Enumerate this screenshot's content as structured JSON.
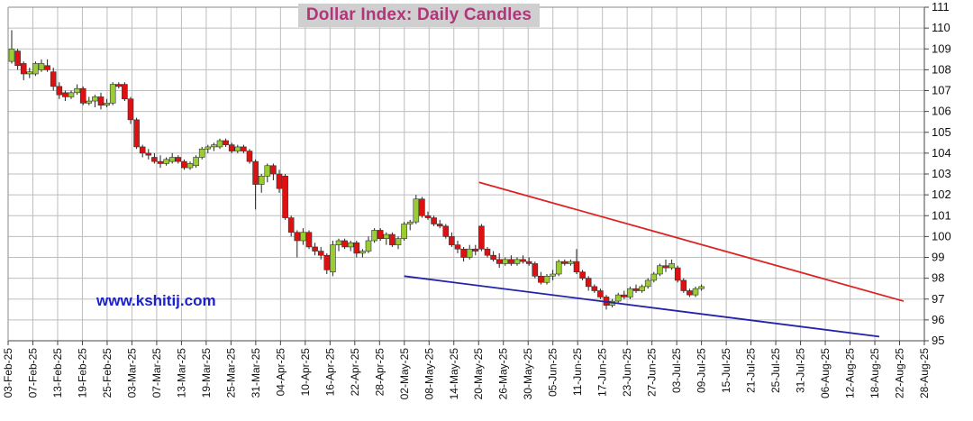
{
  "chart_data": {
    "type": "candlestick",
    "title": "Dollar Index: Daily Candles",
    "watermark": "www.kshitij.com",
    "ylim": [
      95,
      111
    ],
    "y_ticks": [
      95,
      96,
      97,
      98,
      99,
      100,
      101,
      102,
      103,
      104,
      105,
      106,
      107,
      108,
      109,
      110,
      111
    ],
    "x_tick_labels": [
      "03-Feb-25",
      "07-Feb-25",
      "13-Feb-25",
      "19-Feb-25",
      "25-Feb-25",
      "03-Mar-25",
      "07-Mar-25",
      "13-Mar-25",
      "19-Mar-25",
      "25-Mar-25",
      "31-Mar-25",
      "04-Apr-25",
      "10-Apr-25",
      "16-Apr-25",
      "22-Apr-25",
      "28-Apr-25",
      "02-May-25",
      "08-May-25",
      "14-May-25",
      "20-May-25",
      "26-May-25",
      "30-May-25",
      "05-Jun-25",
      "11-Jun-25",
      "17-Jun-25",
      "23-Jun-25",
      "27-Jun-25",
      "03-Jul-25",
      "09-Jul-25",
      "15-Jul-25",
      "21-Jul-25",
      "25-Jul-25",
      "31-Jul-25",
      "06-Aug-25",
      "12-Aug-25",
      "18-Aug-25",
      "22-Aug-25",
      "28-Aug-25"
    ],
    "grid": true,
    "y_axis_position": "right",
    "colors": {
      "up": "#9acd32",
      "down": "#dd1111",
      "upper_trendline": "#dd2222",
      "lower_trendline": "#2222aa",
      "grid": "#bdbdbd"
    },
    "candles": [
      {
        "o": 108.4,
        "h": 109.9,
        "l": 108.3,
        "c": 109.0
      },
      {
        "o": 108.9,
        "h": 109.0,
        "l": 108.0,
        "c": 108.2
      },
      {
        "o": 108.3,
        "h": 108.4,
        "l": 107.5,
        "c": 107.8
      },
      {
        "o": 107.8,
        "h": 108.1,
        "l": 107.6,
        "c": 107.9
      },
      {
        "o": 107.8,
        "h": 108.4,
        "l": 107.7,
        "c": 108.3
      },
      {
        "o": 108.0,
        "h": 108.5,
        "l": 107.9,
        "c": 108.3
      },
      {
        "o": 108.2,
        "h": 108.5,
        "l": 107.9,
        "c": 108.0
      },
      {
        "o": 107.9,
        "h": 108.1,
        "l": 107.0,
        "c": 107.2
      },
      {
        "o": 107.2,
        "h": 107.4,
        "l": 106.6,
        "c": 106.8
      },
      {
        "o": 106.9,
        "h": 107.0,
        "l": 106.5,
        "c": 106.7
      },
      {
        "o": 106.7,
        "h": 107.0,
        "l": 106.6,
        "c": 106.9
      },
      {
        "o": 106.9,
        "h": 107.3,
        "l": 106.8,
        "c": 107.1
      },
      {
        "o": 107.1,
        "h": 107.2,
        "l": 106.3,
        "c": 106.4
      },
      {
        "o": 106.4,
        "h": 106.7,
        "l": 106.3,
        "c": 106.5
      },
      {
        "o": 106.5,
        "h": 106.8,
        "l": 106.2,
        "c": 106.7
      },
      {
        "o": 106.7,
        "h": 106.9,
        "l": 106.1,
        "c": 106.3
      },
      {
        "o": 106.3,
        "h": 106.6,
        "l": 106.2,
        "c": 106.4
      },
      {
        "o": 106.4,
        "h": 107.4,
        "l": 106.3,
        "c": 107.3
      },
      {
        "o": 107.3,
        "h": 107.4,
        "l": 107.1,
        "c": 107.2
      },
      {
        "o": 107.3,
        "h": 107.4,
        "l": 106.5,
        "c": 106.6
      },
      {
        "o": 106.6,
        "h": 106.7,
        "l": 105.4,
        "c": 105.6
      },
      {
        "o": 105.6,
        "h": 105.7,
        "l": 104.2,
        "c": 104.3
      },
      {
        "o": 104.3,
        "h": 104.4,
        "l": 103.8,
        "c": 104.0
      },
      {
        "o": 104.0,
        "h": 104.2,
        "l": 103.7,
        "c": 103.9
      },
      {
        "o": 103.8,
        "h": 104.0,
        "l": 103.5,
        "c": 103.6
      },
      {
        "o": 103.6,
        "h": 103.9,
        "l": 103.3,
        "c": 103.5
      },
      {
        "o": 103.5,
        "h": 103.8,
        "l": 103.4,
        "c": 103.7
      },
      {
        "o": 103.6,
        "h": 104.0,
        "l": 103.5,
        "c": 103.8
      },
      {
        "o": 103.8,
        "h": 103.9,
        "l": 103.5,
        "c": 103.6
      },
      {
        "o": 103.6,
        "h": 103.7,
        "l": 103.2,
        "c": 103.3
      },
      {
        "o": 103.3,
        "h": 103.6,
        "l": 103.2,
        "c": 103.5
      },
      {
        "o": 103.4,
        "h": 103.9,
        "l": 103.3,
        "c": 103.8
      },
      {
        "o": 103.8,
        "h": 104.3,
        "l": 103.7,
        "c": 104.2
      },
      {
        "o": 104.2,
        "h": 104.4,
        "l": 104.0,
        "c": 104.3
      },
      {
        "o": 104.3,
        "h": 104.5,
        "l": 104.1,
        "c": 104.4
      },
      {
        "o": 104.3,
        "h": 104.7,
        "l": 104.2,
        "c": 104.6
      },
      {
        "o": 104.6,
        "h": 104.7,
        "l": 104.3,
        "c": 104.4
      },
      {
        "o": 104.4,
        "h": 104.5,
        "l": 104.0,
        "c": 104.1
      },
      {
        "o": 104.1,
        "h": 104.4,
        "l": 104.0,
        "c": 104.3
      },
      {
        "o": 104.3,
        "h": 104.4,
        "l": 104.0,
        "c": 104.1
      },
      {
        "o": 104.1,
        "h": 104.2,
        "l": 103.5,
        "c": 103.6
      },
      {
        "o": 103.6,
        "h": 103.7,
        "l": 101.3,
        "c": 102.5
      },
      {
        "o": 102.5,
        "h": 103.0,
        "l": 102.1,
        "c": 102.9
      },
      {
        "o": 102.9,
        "h": 103.5,
        "l": 102.6,
        "c": 103.4
      },
      {
        "o": 103.4,
        "h": 103.5,
        "l": 102.7,
        "c": 103.0
      },
      {
        "o": 103.0,
        "h": 103.2,
        "l": 102.1,
        "c": 102.3
      },
      {
        "o": 102.9,
        "h": 103.0,
        "l": 100.8,
        "c": 100.9
      },
      {
        "o": 100.9,
        "h": 101.0,
        "l": 100.0,
        "c": 100.2
      },
      {
        "o": 100.2,
        "h": 100.3,
        "l": 99.0,
        "c": 99.8
      },
      {
        "o": 99.8,
        "h": 100.4,
        "l": 99.6,
        "c": 100.2
      },
      {
        "o": 100.2,
        "h": 100.3,
        "l": 99.4,
        "c": 99.5
      },
      {
        "o": 99.5,
        "h": 99.7,
        "l": 99.1,
        "c": 99.3
      },
      {
        "o": 99.3,
        "h": 99.5,
        "l": 98.9,
        "c": 99.1
      },
      {
        "o": 99.1,
        "h": 99.2,
        "l": 98.2,
        "c": 98.4
      },
      {
        "o": 98.3,
        "h": 99.8,
        "l": 98.1,
        "c": 99.6
      },
      {
        "o": 99.6,
        "h": 99.9,
        "l": 99.3,
        "c": 99.8
      },
      {
        "o": 99.8,
        "h": 99.9,
        "l": 99.4,
        "c": 99.5
      },
      {
        "o": 99.5,
        "h": 99.8,
        "l": 99.3,
        "c": 99.7
      },
      {
        "o": 99.7,
        "h": 99.8,
        "l": 99.0,
        "c": 99.2
      },
      {
        "o": 99.2,
        "h": 99.4,
        "l": 99.0,
        "c": 99.3
      },
      {
        "o": 99.3,
        "h": 100.0,
        "l": 99.2,
        "c": 99.8
      },
      {
        "o": 99.8,
        "h": 100.4,
        "l": 99.7,
        "c": 100.3
      },
      {
        "o": 100.3,
        "h": 100.4,
        "l": 99.8,
        "c": 99.9
      },
      {
        "o": 99.9,
        "h": 100.2,
        "l": 99.6,
        "c": 100.1
      },
      {
        "o": 100.1,
        "h": 100.2,
        "l": 99.5,
        "c": 99.6
      },
      {
        "o": 99.6,
        "h": 100.0,
        "l": 99.4,
        "c": 99.9
      },
      {
        "o": 99.9,
        "h": 100.7,
        "l": 99.8,
        "c": 100.6
      },
      {
        "o": 100.6,
        "h": 100.8,
        "l": 100.3,
        "c": 100.7
      },
      {
        "o": 100.7,
        "h": 102.0,
        "l": 100.6,
        "c": 101.8
      },
      {
        "o": 101.8,
        "h": 101.9,
        "l": 100.9,
        "c": 101.0
      },
      {
        "o": 101.0,
        "h": 101.2,
        "l": 100.8,
        "c": 100.9
      },
      {
        "o": 100.9,
        "h": 101.0,
        "l": 100.5,
        "c": 100.6
      },
      {
        "o": 100.6,
        "h": 100.8,
        "l": 100.4,
        "c": 100.5
      },
      {
        "o": 100.5,
        "h": 100.6,
        "l": 99.9,
        "c": 100.0
      },
      {
        "o": 100.0,
        "h": 100.2,
        "l": 99.5,
        "c": 99.6
      },
      {
        "o": 99.6,
        "h": 99.8,
        "l": 99.2,
        "c": 99.4
      },
      {
        "o": 99.4,
        "h": 99.5,
        "l": 98.8,
        "c": 99.0
      },
      {
        "o": 99.0,
        "h": 99.6,
        "l": 98.9,
        "c": 99.4
      },
      {
        "o": 99.4,
        "h": 99.6,
        "l": 99.1,
        "c": 99.3
      },
      {
        "o": 100.5,
        "h": 100.6,
        "l": 99.3,
        "c": 99.4
      },
      {
        "o": 99.4,
        "h": 99.5,
        "l": 99.0,
        "c": 99.1
      },
      {
        "o": 99.1,
        "h": 99.3,
        "l": 98.8,
        "c": 98.9
      },
      {
        "o": 98.9,
        "h": 99.2,
        "l": 98.5,
        "c": 98.7
      },
      {
        "o": 98.7,
        "h": 99.0,
        "l": 98.6,
        "c": 98.9
      },
      {
        "o": 98.9,
        "h": 99.1,
        "l": 98.6,
        "c": 98.7
      },
      {
        "o": 98.7,
        "h": 99.0,
        "l": 98.6,
        "c": 98.9
      },
      {
        "o": 98.9,
        "h": 99.1,
        "l": 98.7,
        "c": 98.8
      },
      {
        "o": 98.8,
        "h": 99.0,
        "l": 98.6,
        "c": 98.7
      },
      {
        "o": 98.7,
        "h": 98.8,
        "l": 98.0,
        "c": 98.1
      },
      {
        "o": 98.1,
        "h": 98.3,
        "l": 97.7,
        "c": 97.8
      },
      {
        "o": 97.8,
        "h": 98.2,
        "l": 97.7,
        "c": 98.1
      },
      {
        "o": 98.1,
        "h": 98.4,
        "l": 97.9,
        "c": 98.2
      },
      {
        "o": 98.2,
        "h": 98.9,
        "l": 98.1,
        "c": 98.8
      },
      {
        "o": 98.8,
        "h": 98.9,
        "l": 98.6,
        "c": 98.7
      },
      {
        "o": 98.7,
        "h": 98.9,
        "l": 98.6,
        "c": 98.8
      },
      {
        "o": 98.8,
        "h": 99.4,
        "l": 98.2,
        "c": 98.3
      },
      {
        "o": 98.3,
        "h": 98.4,
        "l": 97.9,
        "c": 98.0
      },
      {
        "o": 98.0,
        "h": 98.1,
        "l": 97.4,
        "c": 97.6
      },
      {
        "o": 97.6,
        "h": 97.7,
        "l": 97.3,
        "c": 97.4
      },
      {
        "o": 97.4,
        "h": 97.5,
        "l": 97.0,
        "c": 97.1
      },
      {
        "o": 97.1,
        "h": 97.2,
        "l": 96.5,
        "c": 96.7
      },
      {
        "o": 96.7,
        "h": 97.0,
        "l": 96.6,
        "c": 96.9
      },
      {
        "o": 96.9,
        "h": 97.3,
        "l": 96.8,
        "c": 97.2
      },
      {
        "o": 97.2,
        "h": 97.4,
        "l": 97.0,
        "c": 97.1
      },
      {
        "o": 97.1,
        "h": 97.6,
        "l": 97.0,
        "c": 97.5
      },
      {
        "o": 97.5,
        "h": 97.7,
        "l": 97.3,
        "c": 97.4
      },
      {
        "o": 97.4,
        "h": 97.7,
        "l": 97.3,
        "c": 97.6
      },
      {
        "o": 97.6,
        "h": 98.0,
        "l": 97.5,
        "c": 97.9
      },
      {
        "o": 97.9,
        "h": 98.3,
        "l": 97.8,
        "c": 98.2
      },
      {
        "o": 98.2,
        "h": 98.7,
        "l": 98.1,
        "c": 98.6
      },
      {
        "o": 98.6,
        "h": 98.9,
        "l": 98.3,
        "c": 98.5
      },
      {
        "o": 98.5,
        "h": 98.9,
        "l": 98.4,
        "c": 98.7
      },
      {
        "o": 98.5,
        "h": 98.6,
        "l": 97.8,
        "c": 97.9
      },
      {
        "o": 97.9,
        "h": 98.0,
        "l": 97.3,
        "c": 97.4
      },
      {
        "o": 97.4,
        "h": 97.5,
        "l": 97.1,
        "c": 97.2
      },
      {
        "o": 97.2,
        "h": 97.6,
        "l": 97.1,
        "c": 97.5
      },
      {
        "o": 97.5,
        "h": 97.7,
        "l": 97.4,
        "c": 97.6
      }
    ],
    "trendlines": [
      {
        "name": "upper",
        "start": {
          "x_index": 78.6,
          "y": 102.6
        },
        "end": {
          "x_index": 150.0,
          "y": 96.9
        }
      },
      {
        "name": "lower",
        "start": {
          "x_index": 66.0,
          "y": 98.1
        },
        "end": {
          "x_index": 145.9,
          "y": 95.2
        }
      }
    ]
  }
}
